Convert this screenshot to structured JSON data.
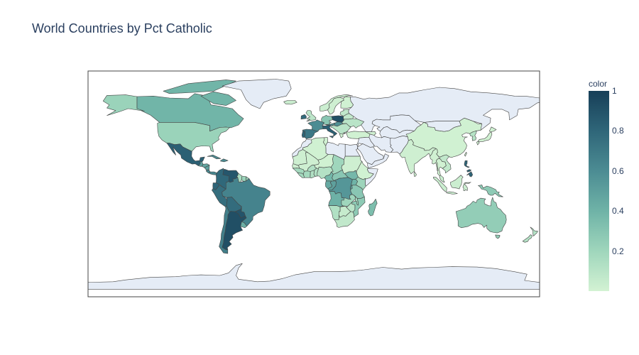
{
  "title": "World Countries by Pct Catholic",
  "chart_data": {
    "type": "choropleth",
    "title": "World Countries by Pct Catholic",
    "projection": "equirectangular",
    "colorbar": {
      "title": "color",
      "range": [
        0,
        1
      ],
      "ticks": [
        "1",
        "0.8",
        "0.6",
        "0.4",
        "0.2"
      ],
      "tick_values": [
        1.0,
        0.8,
        0.6,
        0.4,
        0.2
      ],
      "colorscale": [
        "#d3f2d3",
        "#9fd6bc",
        "#6fb3a7",
        "#4c8c93",
        "#2f6679",
        "#173f58"
      ]
    },
    "colors": {
      "no_data": "#e5ecf6",
      "border": "#444444",
      "frame": "#444444"
    },
    "regions": [
      {
        "name": "Canada",
        "value": 0.39
      },
      {
        "name": "United States",
        "value": 0.22
      },
      {
        "name": "Greenland",
        "value": null
      },
      {
        "name": "Alaska (US)",
        "value": 0.22
      },
      {
        "name": "Mexico",
        "value": 0.83
      },
      {
        "name": "Guatemala",
        "value": 0.5
      },
      {
        "name": "Honduras",
        "value": 0.46
      },
      {
        "name": "Nicaragua",
        "value": 0.5
      },
      {
        "name": "Costa Rica",
        "value": 0.62
      },
      {
        "name": "Panama",
        "value": 0.63
      },
      {
        "name": "Cuba",
        "value": 0.6
      },
      {
        "name": "Colombia",
        "value": 0.79
      },
      {
        "name": "Venezuela",
        "value": 0.88
      },
      {
        "name": "Guyana",
        "value": 0.15
      },
      {
        "name": "Suriname",
        "value": 0.22
      },
      {
        "name": "Ecuador",
        "value": 0.81
      },
      {
        "name": "Peru",
        "value": 0.76
      },
      {
        "name": "Brazil",
        "value": 0.65
      },
      {
        "name": "Bolivia",
        "value": 0.77
      },
      {
        "name": "Paraguay",
        "value": 0.89
      },
      {
        "name": "Uruguay",
        "value": 0.42
      },
      {
        "name": "Chile",
        "value": 0.67
      },
      {
        "name": "Argentina",
        "value": 0.92
      },
      {
        "name": "Iceland",
        "value": 0.04
      },
      {
        "name": "Norway",
        "value": 0.03
      },
      {
        "name": "Sweden",
        "value": 0.02
      },
      {
        "name": "Finland",
        "value": 0.01
      },
      {
        "name": "United Kingdom",
        "value": 0.09
      },
      {
        "name": "Ireland",
        "value": 0.78
      },
      {
        "name": "France",
        "value": 0.6
      },
      {
        "name": "Spain",
        "value": 0.71
      },
      {
        "name": "Portugal",
        "value": 0.81
      },
      {
        "name": "Italy",
        "value": 0.83
      },
      {
        "name": "Germany",
        "value": 0.29
      },
      {
        "name": "Poland",
        "value": 0.92
      },
      {
        "name": "Austria",
        "value": 0.58
      },
      {
        "name": "Ukraine",
        "value": 0.1
      },
      {
        "name": "Belarus",
        "value": 0.07
      },
      {
        "name": "Russia",
        "value": null
      },
      {
        "name": "Turkey",
        "value": 0.01
      },
      {
        "name": "Kazakhstan",
        "value": null
      },
      {
        "name": "Iran",
        "value": null
      },
      {
        "name": "Saudi Arabia",
        "value": null
      },
      {
        "name": "Egypt",
        "value": null
      },
      {
        "name": "Morocco",
        "value": null
      },
      {
        "name": "Algeria",
        "value": 0.01
      },
      {
        "name": "Libya",
        "value": null
      },
      {
        "name": "Mali",
        "value": 0.02
      },
      {
        "name": "Niger",
        "value": 0.01
      },
      {
        "name": "Chad",
        "value": 0.2
      },
      {
        "name": "Sudan",
        "value": 0.02
      },
      {
        "name": "Ethiopia",
        "value": 0.01
      },
      {
        "name": "Somalia",
        "value": null
      },
      {
        "name": "Nigeria",
        "value": 0.12
      },
      {
        "name": "Ivory Coast",
        "value": 0.18
      },
      {
        "name": "Ghana",
        "value": 0.13
      },
      {
        "name": "Cameroon",
        "value": 0.38
      },
      {
        "name": "Central African Republic",
        "value": 0.29
      },
      {
        "name": "Gabon",
        "value": 0.45
      },
      {
        "name": "Congo",
        "value": 0.5
      },
      {
        "name": "DR Congo",
        "value": 0.55
      },
      {
        "name": "South Sudan",
        "value": 0.37
      },
      {
        "name": "Uganda",
        "value": 0.4
      },
      {
        "name": "Kenya",
        "value": 0.21
      },
      {
        "name": "Tanzania",
        "value": 0.29
      },
      {
        "name": "Rwanda",
        "value": 0.5
      },
      {
        "name": "Burundi",
        "value": 0.62
      },
      {
        "name": "Angola",
        "value": 0.41
      },
      {
        "name": "Zambia",
        "value": 0.2
      },
      {
        "name": "Malawi",
        "value": 0.17
      },
      {
        "name": "Mozambique",
        "value": 0.27
      },
      {
        "name": "Zimbabwe",
        "value": 0.1
      },
      {
        "name": "Namibia",
        "value": 0.13
      },
      {
        "name": "Botswana",
        "value": 0.05
      },
      {
        "name": "South Africa",
        "value": 0.07
      },
      {
        "name": "Madagascar",
        "value": 0.34
      },
      {
        "name": "India",
        "value": 0.02
      },
      {
        "name": "China",
        "value": 0.01
      },
      {
        "name": "Mongolia",
        "value": null
      },
      {
        "name": "Myanmar",
        "value": 0.01
      },
      {
        "name": "Thailand",
        "value": 0.01
      },
      {
        "name": "Vietnam",
        "value": 0.07
      },
      {
        "name": "Philippines",
        "value": 0.81
      },
      {
        "name": "South Korea",
        "value": 0.11
      },
      {
        "name": "Japan",
        "value": 0.01
      },
      {
        "name": "Indonesia",
        "value": 0.03
      },
      {
        "name": "Papua New Guinea",
        "value": 0.27
      },
      {
        "name": "Australia",
        "value": 0.25
      },
      {
        "name": "New Zealand",
        "value": 0.12
      },
      {
        "name": "Antarctica",
        "value": null
      }
    ]
  }
}
